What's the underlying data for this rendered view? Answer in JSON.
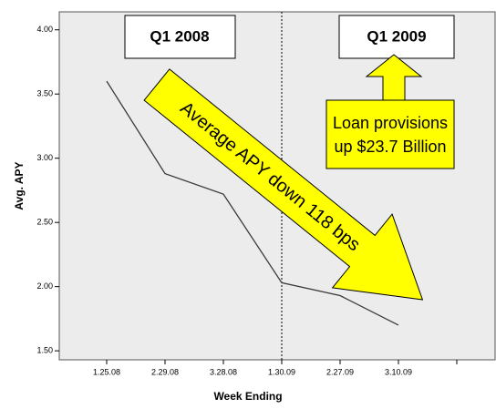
{
  "chart_data": {
    "type": "line",
    "x_label": "Week Ending",
    "y_label": "Avg. APY",
    "categories": [
      "1.25.08",
      "2.29.08",
      "3.28.08",
      "1.30.09",
      "2.27.09",
      "3.10.09",
      null
    ],
    "series": [
      {
        "color": "#3a3a3a",
        "values": [
          3.6,
          2.88,
          2.72,
          2.03,
          1.93,
          1.7,
          null
        ]
      }
    ],
    "ylim": [
      1.43,
      4.14
    ],
    "yticks": [
      {
        "value": 1.5,
        "label": "1.50"
      },
      {
        "value": 2,
        "label": "2.00"
      },
      {
        "value": 2.5,
        "label": "2.50"
      },
      {
        "value": 3,
        "label": "3.00"
      },
      {
        "value": 3.5,
        "label": "3.50"
      },
      {
        "value": 4,
        "label": "4.00"
      }
    ],
    "grid": false,
    "annotations": [
      "Q1 2008",
      "Q1 2009",
      "Average APY down 118 bps",
      "Loan provisions",
      "up $23.7 Billion"
    ]
  }
}
